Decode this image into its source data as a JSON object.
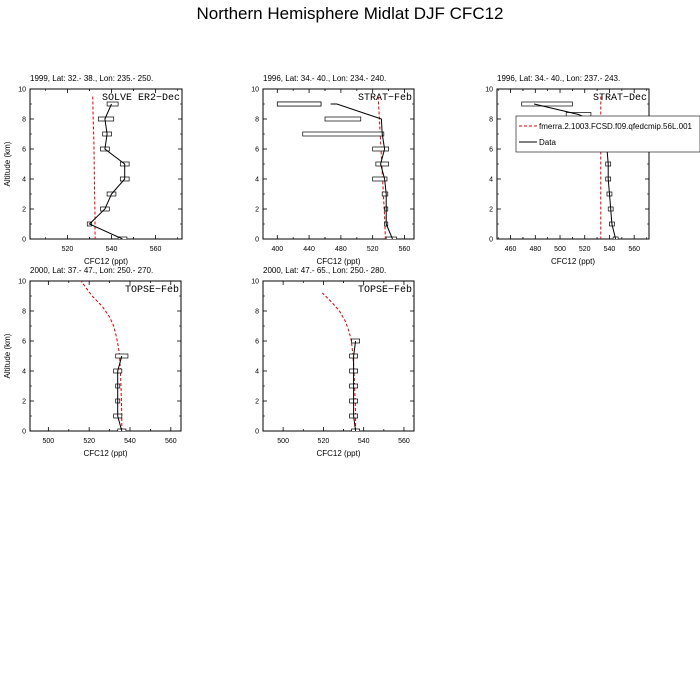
{
  "title": "Northern Hemisphere Midlat DJF CFC12",
  "legend": {
    "model_label": "fmerra.2.1003.FCSD.f09.qfedcmip.56L.001",
    "data_label": "Data",
    "model_color": "#e00000",
    "data_color": "#000000"
  },
  "chart_data": [
    {
      "type": "line",
      "header": "1999, Lat: 32.- 38., Lon: 235.- 250.",
      "campaign": "SOLVE ER2−Dec",
      "xlabel": "CFC12 (ppt)",
      "ylabel": "Altitude (km)",
      "xlim": [
        503,
        572
      ],
      "ylim": [
        0,
        10
      ],
      "xticks": [
        520,
        540,
        560
      ],
      "yticks": [
        0,
        2,
        4,
        6,
        8,
        10
      ],
      "series": [
        {
          "name": "fmerra.2.1003.FCSD.f09.qfedcmip.56L.001",
          "kind": "model",
          "x": [
            531.5,
            531.6,
            531.8,
            532.0,
            532.1,
            532.2,
            532.3,
            532.4,
            532.5,
            532.5,
            532.6
          ],
          "y": [
            9.5,
            8.5,
            7.5,
            6.5,
            5.5,
            4.5,
            3.5,
            2.5,
            1.5,
            0.5,
            0
          ]
        },
        {
          "name": "Data",
          "kind": "data",
          "x": [
            545,
            530,
            537,
            540,
            546,
            546,
            537,
            538,
            537,
            540
          ],
          "y": [
            0,
            1,
            2,
            3,
            4,
            5,
            6,
            7,
            8,
            9
          ],
          "err_lo": [
            543,
            529,
            535,
            538,
            544,
            544,
            535,
            536,
            534,
            538
          ],
          "err_hi": [
            547,
            531,
            539,
            542,
            548,
            548,
            539,
            540,
            541,
            543
          ]
        }
      ],
      "show_legend": false
    },
    {
      "type": "line",
      "header": "1996, Lat: 34.- 40., Lon: 234.- 240.",
      "campaign": "STRAT−Feb",
      "xlabel": "CFC12 (ppt)",
      "ylabel": "",
      "xlim": [
        382,
        572
      ],
      "ylim": [
        0,
        10
      ],
      "xticks": [
        400,
        440,
        480,
        520,
        560
      ],
      "yticks": [
        0,
        2,
        4,
        6,
        8,
        10
      ],
      "series": [
        {
          "name": "fmerra.2.1003.FCSD.f09.qfedcmip.56L.001",
          "kind": "model",
          "x": [
            527,
            528,
            529,
            530,
            531,
            532,
            533,
            534,
            535,
            536
          ],
          "y": [
            9.5,
            8.5,
            7.5,
            6.5,
            5.5,
            4.5,
            3.5,
            2.5,
            1.5,
            0
          ]
        },
        {
          "name": "Data",
          "kind": "data",
          "x": [
            545,
            537,
            537,
            537,
            535,
            530,
            535,
            532,
            531,
            475,
            467
          ],
          "y": [
            0,
            1,
            2,
            3,
            4,
            5,
            6,
            7,
            8,
            9,
            9
          ],
          "err_lo": [
            537,
            535,
            535,
            532,
            520,
            524,
            520,
            432,
            460,
            400,
            400
          ],
          "err_hi": [
            550,
            539,
            539,
            539,
            538,
            540,
            540,
            534,
            505,
            455,
            455
          ]
        }
      ],
      "show_legend": false
    },
    {
      "type": "line",
      "header": "1996, Lat: 34.- 40., Lon: 237.- 243.",
      "campaign": "STRAT−Dec",
      "xlabel": "CFC12 (ppt)",
      "ylabel": "",
      "xlim": [
        449,
        572
      ],
      "ylim": [
        0,
        10
      ],
      "xticks": [
        460,
        480,
        500,
        520,
        540,
        560
      ],
      "yticks": [
        0,
        2,
        4,
        6,
        8,
        10
      ],
      "series": [
        {
          "name": "fmerra.2.1003.FCSD.f09.qfedcmip.56L.001",
          "kind": "model",
          "x": [
            533,
            533,
            533,
            533,
            533,
            533,
            533,
            533,
            533,
            533
          ],
          "y": [
            9.5,
            8.5,
            7.5,
            6.5,
            5.5,
            4.5,
            3.5,
            2.5,
            1.5,
            0
          ]
        },
        {
          "name": "Data",
          "kind": "data",
          "x": [
            545,
            542,
            541,
            540,
            539,
            539,
            538,
            531,
            523,
            515,
            479
          ],
          "y": [
            0,
            1,
            2,
            3,
            4,
            5,
            6,
            7,
            8,
            8.3,
            9
          ],
          "err_lo": [
            543,
            540,
            539,
            538,
            537,
            537,
            518,
            529,
            515,
            505,
            469
          ],
          "err_hi": [
            547,
            544,
            543,
            542,
            541,
            541,
            534,
            533,
            531,
            525,
            510
          ]
        }
      ],
      "show_legend": true
    },
    {
      "type": "line",
      "header": "2000, Lat: 37.- 47., Lon: 250.- 270.",
      "campaign": "TOPSE−Feb",
      "xlabel": "CFC12 (ppt)",
      "ylabel": "Altitude (km)",
      "xlim": [
        491,
        565
      ],
      "ylim": [
        0,
        10
      ],
      "xticks": [
        500,
        520,
        540,
        560
      ],
      "yticks": [
        0,
        2,
        4,
        6,
        8,
        10
      ],
      "series": [
        {
          "name": "fmerra.2.1003.FCSD.f09.qfedcmip.56L.001",
          "kind": "model",
          "x": [
            536,
            536,
            535.8,
            535.6,
            535.3,
            534.9,
            534.3,
            533.5,
            532.0,
            530.0,
            526.5,
            521.5,
            516.0
          ],
          "y": [
            0,
            1,
            2,
            3,
            4,
            5,
            5.6,
            6.2,
            7.0,
            7.6,
            8.3,
            9.0,
            10.0
          ]
        },
        {
          "name": "Data",
          "kind": "data",
          "x": [
            536,
            534,
            534,
            534,
            534,
            536
          ],
          "y": [
            0,
            1,
            2,
            3,
            4,
            5
          ],
          "err_lo": [
            534,
            532,
            533,
            533,
            532,
            533
          ],
          "err_hi": [
            538,
            536,
            535,
            535,
            536,
            539
          ]
        }
      ],
      "show_legend": false
    },
    {
      "type": "line",
      "header": "2000, Lat: 47.- 65., Lon: 250.- 280.",
      "campaign": "TOPSE−Feb",
      "xlabel": "CFC12 (ppt)",
      "ylabel": "",
      "xlim": [
        490,
        565
      ],
      "ylim": [
        0,
        10
      ],
      "xticks": [
        500,
        520,
        540,
        560
      ],
      "yticks": [
        0,
        2,
        4,
        6,
        8,
        10
      ],
      "series": [
        {
          "name": "fmerra.2.1003.FCSD.f09.qfedcmip.56L.001",
          "kind": "model",
          "x": [
            536,
            536,
            535.8,
            535.5,
            535.2,
            534.7,
            533.9,
            532.8,
            531.0,
            528.0,
            524.0,
            519.5
          ],
          "y": [
            0,
            1,
            2,
            3,
            4,
            5,
            6.0,
            6.6,
            7.3,
            8.0,
            8.6,
            9.2
          ]
        },
        {
          "name": "Data",
          "kind": "data",
          "x": [
            536,
            535,
            535,
            535,
            535,
            535,
            536
          ],
          "y": [
            0,
            1,
            2,
            3,
            4,
            5,
            6
          ],
          "err_lo": [
            534,
            533,
            533,
            533,
            533,
            533,
            534
          ],
          "err_hi": [
            538,
            537,
            537,
            537,
            537,
            537,
            538
          ]
        }
      ],
      "show_legend": false
    }
  ]
}
